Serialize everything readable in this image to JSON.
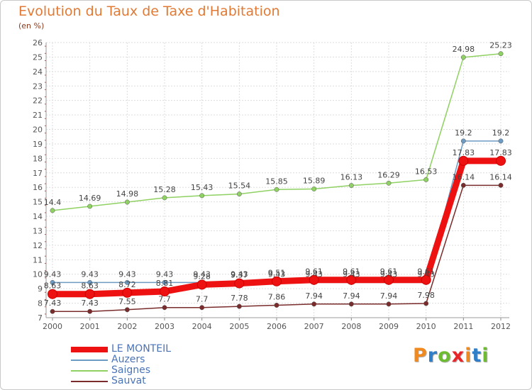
{
  "title": "Evolution du Taux de Taxe d'Habitation",
  "subtitle": "(en %)",
  "logo": {
    "letters": [
      "P",
      "r",
      "o",
      "x",
      "i",
      "t",
      "i"
    ],
    "colors": [
      "#f08a1e",
      "#2f7fc8",
      "#6dbb31",
      "#e8262a",
      "#f08a1e",
      "#2f7fc8",
      "#6dbb31"
    ]
  },
  "chart_data": {
    "type": "line",
    "title": "Evolution du Taux de Taxe d'Habitation",
    "ylabel": "(en %)",
    "x": [
      "2000",
      "2001",
      "2002",
      "2003",
      "2004",
      "2005",
      "2006",
      "2007",
      "2008",
      "2009",
      "2010",
      "2011",
      "2012"
    ],
    "ylim": [
      7,
      26
    ],
    "yticks": [
      7,
      8,
      9,
      10,
      11,
      12,
      13,
      14,
      15,
      16,
      17,
      18,
      19,
      20,
      21,
      22,
      23,
      24,
      25,
      26
    ],
    "grid": true,
    "legend_position": "bottom-left",
    "series": [
      {
        "name": "LE MONTEIL",
        "color": "#ee1111",
        "values": [
          8.63,
          8.63,
          8.72,
          8.81,
          9.28,
          9.37,
          9.51,
          9.61,
          9.61,
          9.61,
          9.61,
          17.83,
          17.83
        ],
        "labels": [
          "8.63",
          "8.63",
          "8.72",
          "8.81",
          "9.28",
          "9.37",
          "9.51",
          "9.61",
          "9.61",
          "9.61",
          "9.61",
          "17.83",
          "17.83"
        ]
      },
      {
        "name": "Auzers",
        "color": "#6c9bc4",
        "values": [
          9.43,
          9.43,
          9.43,
          9.43,
          9.43,
          9.43,
          9.43,
          9.43,
          9.43,
          9.43,
          9.43,
          19.2,
          19.2
        ],
        "labels": [
          "9.43",
          "9.43",
          "9.43",
          "9.43",
          "9.43",
          "9.43",
          "9.43",
          "9.43",
          "9.43",
          "9.43",
          "9.43",
          "19.2",
          "19.2"
        ]
      },
      {
        "name": "Saignes",
        "color": "#8fd162",
        "values": [
          14.4,
          14.69,
          14.98,
          15.28,
          15.43,
          15.54,
          15.85,
          15.89,
          16.13,
          16.29,
          16.53,
          24.98,
          25.23
        ],
        "labels": [
          "14.4",
          "14.69",
          "14.98",
          "15.28",
          "15.43",
          "15.54",
          "15.85",
          "15.89",
          "16.13",
          "16.29",
          "16.53",
          "24.98",
          "25.23"
        ]
      },
      {
        "name": "Sauvat",
        "color": "#7a2b2b",
        "values": [
          7.43,
          7.43,
          7.55,
          7.7,
          7.7,
          7.78,
          7.86,
          7.94,
          7.94,
          7.94,
          7.98,
          16.14,
          16.14
        ],
        "labels": [
          "7.43",
          "7.43",
          "7.55",
          "7.7",
          "7.7",
          "7.78",
          "7.86",
          "7.94",
          "7.94",
          "7.94",
          "7.98",
          "16.14",
          "16.14"
        ]
      }
    ]
  }
}
